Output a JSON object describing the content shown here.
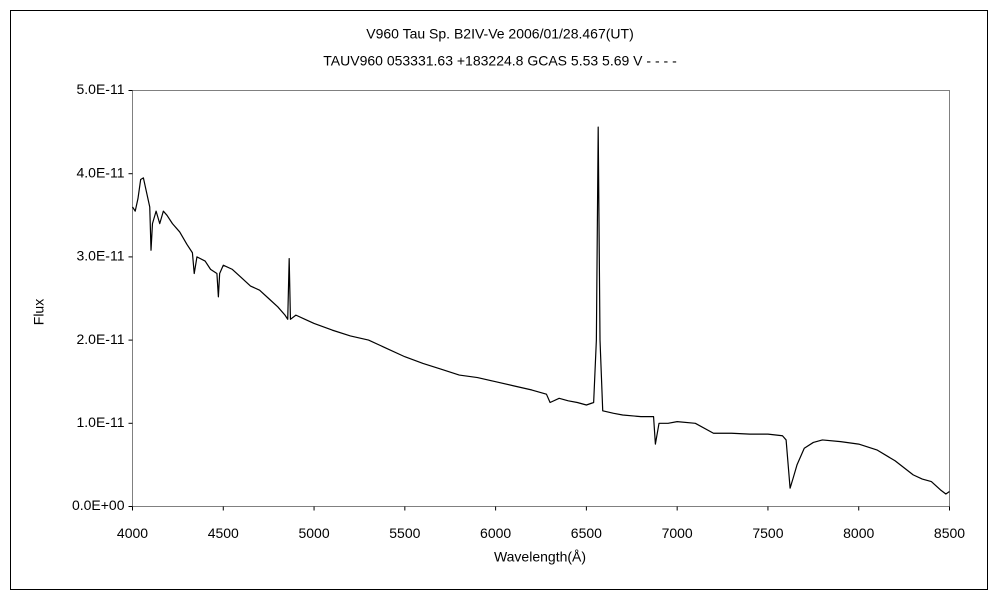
{
  "chart_data": {
    "type": "line",
    "title": "V960 Tau    Sp. B2IV-Ve    2006/01/28.467(UT)",
    "subtitle": "TAUV960 053331.63 +183224.8 GCAS 5.53 5.69 V - - - -",
    "x_label": "Wavelength(Å)",
    "y_label": "Flux",
    "color": "#000000",
    "grid": false,
    "xlim": [
      4000,
      8500
    ],
    "xticks": [
      4000,
      4500,
      5000,
      5500,
      6000,
      6500,
      7000,
      7500,
      8000,
      8500
    ],
    "ylim": [
      0,
      5e-11
    ],
    "yticks": [
      {
        "value": 0,
        "label": "0.0E+00"
      },
      {
        "value": 1e-11,
        "label": "1.0E-11"
      },
      {
        "value": 2e-11,
        "label": "2.0E-11"
      },
      {
        "value": 3e-11,
        "label": "3.0E-11"
      },
      {
        "value": 4e-11,
        "label": "4.0E-11"
      },
      {
        "value": 5e-11,
        "label": "5.0E-11"
      }
    ],
    "x": [
      4000,
      4015,
      4030,
      4045,
      4060,
      4080,
      4095,
      4102,
      4110,
      4130,
      4150,
      4170,
      4190,
      4220,
      4260,
      4300,
      4330,
      4340,
      4355,
      4400,
      4430,
      4465,
      4473,
      4480,
      4500,
      4550,
      4600,
      4650,
      4700,
      4750,
      4800,
      4840,
      4855,
      4863,
      4870,
      4900,
      4950,
      5000,
      5100,
      5200,
      5300,
      5400,
      5500,
      5600,
      5700,
      5800,
      5900,
      6000,
      6100,
      6200,
      6280,
      6300,
      6350,
      6400,
      6450,
      6500,
      6540,
      6555,
      6565,
      6575,
      6590,
      6650,
      6700,
      6800,
      6870,
      6880,
      6900,
      6950,
      7000,
      7100,
      7200,
      7300,
      7400,
      7500,
      7580,
      7600,
      7622,
      7640,
      7660,
      7700,
      7750,
      7800,
      7900,
      8000,
      8100,
      8200,
      8300,
      8350,
      8400,
      8450,
      8480,
      8500
    ],
    "values": [
      3.6e-11,
      3.55e-11,
      3.7e-11,
      3.93e-11,
      3.95e-11,
      3.75e-11,
      3.6e-11,
      3.08e-11,
      3.4e-11,
      3.55e-11,
      3.4e-11,
      3.55e-11,
      3.5e-11,
      3.4e-11,
      3.3e-11,
      3.15e-11,
      3.05e-11,
      2.8e-11,
      3e-11,
      2.95e-11,
      2.85e-11,
      2.8e-11,
      2.52e-11,
      2.8e-11,
      2.9e-11,
      2.85e-11,
      2.75e-11,
      2.65e-11,
      2.6e-11,
      2.5e-11,
      2.4e-11,
      2.3e-11,
      2.25e-11,
      2.98e-11,
      2.25e-11,
      2.3e-11,
      2.25e-11,
      2.2e-11,
      2.12e-11,
      2.05e-11,
      2e-11,
      1.9e-11,
      1.8e-11,
      1.72e-11,
      1.65e-11,
      1.58e-11,
      1.55e-11,
      1.5e-11,
      1.45e-11,
      1.4e-11,
      1.35e-11,
      1.25e-11,
      1.3e-11,
      1.27e-11,
      1.25e-11,
      1.22e-11,
      1.25e-11,
      2e-11,
      4.56e-11,
      2e-11,
      1.15e-11,
      1.12e-11,
      1.1e-11,
      1.08e-11,
      1.08e-11,
      7.5e-12,
      1e-11,
      1e-11,
      1.02e-11,
      1e-11,
      8.8e-12,
      8.8e-12,
      8.7e-12,
      8.7e-12,
      8.5e-12,
      8e-12,
      2.2e-12,
      3.5e-12,
      5e-12,
      7e-12,
      7.7e-12,
      8e-12,
      7.8e-12,
      7.5e-12,
      6.8e-12,
      5.5e-12,
      3.8e-12,
      3.3e-12,
      3e-12,
      2e-12,
      1.5e-12,
      1.8e-12
    ]
  }
}
